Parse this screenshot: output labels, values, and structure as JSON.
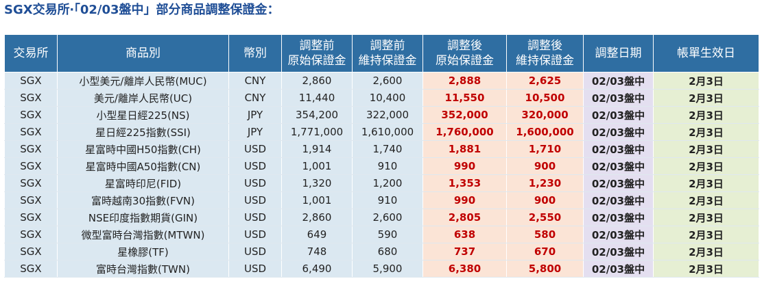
{
  "title": "SGX交易所‧「02/03盤中」部分商品調整保證金：",
  "headers": {
    "exchange": "交易所",
    "product": "商品別",
    "currency": "幣別",
    "prev_initial_l1": "調整前",
    "prev_initial_l2": "原始保證金",
    "prev_maint_l1": "調整前",
    "prev_maint_l2": "維持保證金",
    "new_initial_l1": "調整後",
    "new_initial_l2": "原始保證金",
    "new_maint_l1": "調整後",
    "new_maint_l2": "維持保證金",
    "adj_date": "調整日期",
    "effective_date": "帳單生效日"
  },
  "rows": [
    {
      "exchange": "SGX",
      "product": "小型美元/離岸人民幣(MUC)",
      "currency": "CNY",
      "prev_initial": "2,860",
      "prev_maint": "2,600",
      "new_initial": "2,888",
      "new_maint": "2,625",
      "adj_date": "02/03盤中",
      "effective": "2月3日"
    },
    {
      "exchange": "SGX",
      "product": "美元/離岸人民幣(UC)",
      "currency": "CNY",
      "prev_initial": "11,440",
      "prev_maint": "10,400",
      "new_initial": "11,550",
      "new_maint": "10,500",
      "adj_date": "02/03盤中",
      "effective": "2月3日"
    },
    {
      "exchange": "SGX",
      "product": "小型星日經225(NS)",
      "currency": "JPY",
      "prev_initial": "354,200",
      "prev_maint": "322,000",
      "new_initial": "352,000",
      "new_maint": "320,000",
      "adj_date": "02/03盤中",
      "effective": "2月3日"
    },
    {
      "exchange": "SGX",
      "product": "星日經225指數(SSI)",
      "currency": "JPY",
      "prev_initial": "1,771,000",
      "prev_maint": "1,610,000",
      "new_initial": "1,760,000",
      "new_maint": "1,600,000",
      "adj_date": "02/03盤中",
      "effective": "2月3日"
    },
    {
      "exchange": "SGX",
      "product": "星富時中國H50指數(CH)",
      "currency": "USD",
      "prev_initial": "1,914",
      "prev_maint": "1,740",
      "new_initial": "1,881",
      "new_maint": "1,710",
      "adj_date": "02/03盤中",
      "effective": "2月3日"
    },
    {
      "exchange": "SGX",
      "product": "星富時中國A50指數(CN)",
      "currency": "USD",
      "prev_initial": "1,001",
      "prev_maint": "910",
      "new_initial": "990",
      "new_maint": "900",
      "adj_date": "02/03盤中",
      "effective": "2月3日"
    },
    {
      "exchange": "SGX",
      "product": "星富時印尼(FID)",
      "currency": "USD",
      "prev_initial": "1,320",
      "prev_maint": "1,200",
      "new_initial": "1,353",
      "new_maint": "1,230",
      "adj_date": "02/03盤中",
      "effective": "2月3日"
    },
    {
      "exchange": "SGX",
      "product": "富時越南30指數(FVN)",
      "currency": "USD",
      "prev_initial": "1,001",
      "prev_maint": "910",
      "new_initial": "990",
      "new_maint": "900",
      "adj_date": "02/03盤中",
      "effective": "2月3日"
    },
    {
      "exchange": "SGX",
      "product": "NSE印度指數期貨(GIN)",
      "currency": "USD",
      "prev_initial": "2,860",
      "prev_maint": "2,600",
      "new_initial": "2,805",
      "new_maint": "2,550",
      "adj_date": "02/03盤中",
      "effective": "2月3日"
    },
    {
      "exchange": "SGX",
      "product": "微型富時台灣指數(MTWN)",
      "currency": "USD",
      "prev_initial": "649",
      "prev_maint": "590",
      "new_initial": "638",
      "new_maint": "580",
      "adj_date": "02/03盤中",
      "effective": "2月3日"
    },
    {
      "exchange": "SGX",
      "product": "星橡膠(TF)",
      "currency": "USD",
      "prev_initial": "748",
      "prev_maint": "680",
      "new_initial": "737",
      "new_maint": "670",
      "adj_date": "02/03盤中",
      "effective": "2月3日"
    },
    {
      "exchange": "SGX",
      "product": "富時台灣指數(TWN)",
      "currency": "USD",
      "prev_initial": "6,490",
      "prev_maint": "5,900",
      "new_initial": "6,380",
      "new_maint": "5,800",
      "adj_date": "02/03盤中",
      "effective": "2月3日"
    }
  ],
  "colors": {
    "title": "#1f4e96",
    "header_bg": "#2f6ea2",
    "base_cell_bg": "#dbe8f1",
    "adjusted_cell_bg": "#fbe4d6",
    "adjusted_text": "#c00000",
    "date_cell_bg": "#e4dff0",
    "effective_cell_bg": "#e6efd3"
  }
}
